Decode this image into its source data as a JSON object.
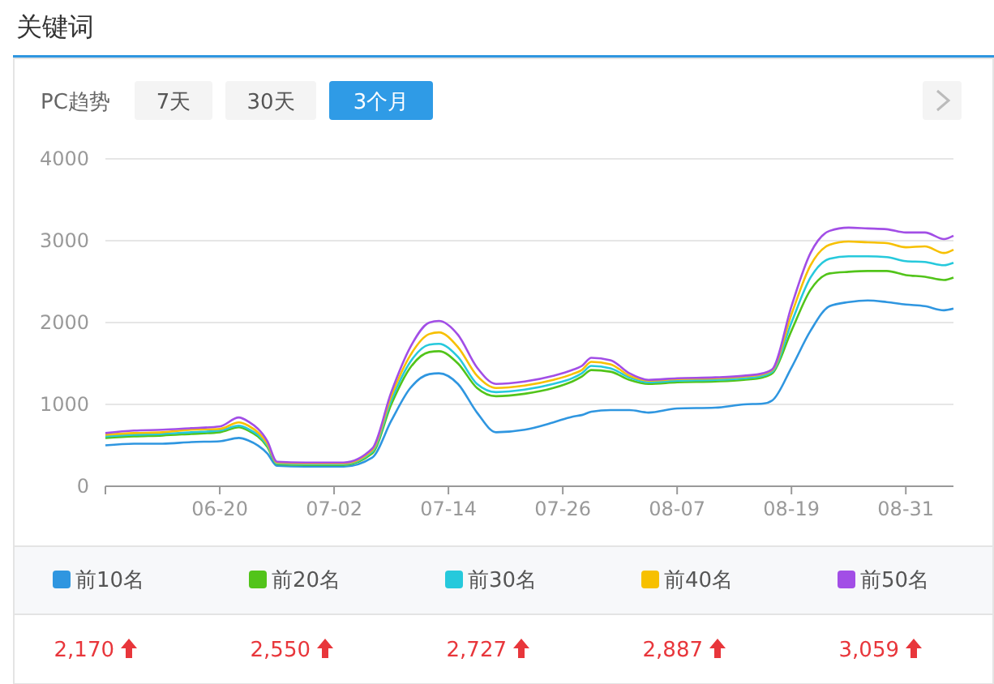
{
  "chart_data": {
    "type": "line",
    "title": "关键词",
    "annotations": [
      "PC趋势",
      "7天",
      "30天",
      "3个月",
      "2,170",
      "2,550",
      "2,727",
      "2,887",
      "3,059"
    ],
    "x": [
      "--06-08",
      "--06-11",
      "--06-14",
      "--06-17",
      "--06-20",
      "--06-22",
      "--06-23",
      "--06-25",
      "--06-26",
      "--06-29",
      "--07-03",
      "--07-06",
      "--07-08",
      "--07-10",
      "--07-12",
      "--07-13",
      "--07-15",
      "--07-17",
      "--07-19",
      "--07-22",
      "--07-25",
      "--07-27",
      "--07-28",
      "--07-29",
      "--07-31",
      "--08-02",
      "--08-04",
      "--08-07",
      "--08-11",
      "--08-14",
      "--08-16",
      "--08-17",
      "--08-19",
      "--08-21",
      "--08-23",
      "--08-25",
      "--08-27",
      "--08-29",
      "--08-31",
      "--09-02",
      "--09-04",
      "--09-05"
    ],
    "series": [
      {
        "name": "前10名",
        "color": "#2f96e0",
        "values": [
          500,
          520,
          520,
          540,
          550,
          590,
          560,
          400,
          250,
          240,
          240,
          350,
          800,
          1200,
          1370,
          1380,
          1250,
          900,
          660,
          690,
          780,
          850,
          870,
          910,
          930,
          930,
          900,
          950,
          960,
          1000,
          1010,
          1050,
          1450,
          1900,
          2200,
          2250,
          2270,
          2250,
          2220,
          2200,
          2150,
          2170
        ]
      },
      {
        "name": "前20名",
        "color": "#52c41a",
        "values": [
          590,
          610,
          620,
          640,
          660,
          720,
          680,
          480,
          270,
          260,
          260,
          400,
          1000,
          1450,
          1640,
          1650,
          1500,
          1200,
          1100,
          1130,
          1200,
          1280,
          1340,
          1420,
          1400,
          1300,
          1250,
          1270,
          1280,
          1300,
          1330,
          1380,
          1900,
          2400,
          2600,
          2620,
          2630,
          2630,
          2580,
          2560,
          2520,
          2550
        ]
      },
      {
        "name": "前30名",
        "color": "#26c9dc",
        "values": [
          610,
          630,
          640,
          660,
          680,
          740,
          700,
          500,
          280,
          270,
          270,
          420,
          1050,
          1520,
          1730,
          1740,
          1580,
          1250,
          1150,
          1180,
          1250,
          1320,
          1380,
          1470,
          1440,
          1330,
          1270,
          1290,
          1300,
          1320,
          1350,
          1400,
          2000,
          2550,
          2780,
          2810,
          2810,
          2800,
          2750,
          2740,
          2700,
          2730
        ]
      },
      {
        "name": "前40名",
        "color": "#f7c000",
        "values": [
          630,
          650,
          660,
          690,
          700,
          780,
          740,
          520,
          290,
          280,
          280,
          440,
          1100,
          1600,
          1860,
          1880,
          1700,
          1350,
          1200,
          1230,
          1300,
          1370,
          1420,
          1520,
          1490,
          1350,
          1290,
          1310,
          1320,
          1340,
          1370,
          1420,
          2100,
          2700,
          2950,
          2990,
          2980,
          2970,
          2920,
          2930,
          2850,
          2890
        ]
      },
      {
        "name": "前50名",
        "color": "#a24ee6",
        "values": [
          650,
          680,
          690,
          710,
          730,
          840,
          790,
          550,
          300,
          290,
          290,
          460,
          1150,
          1700,
          2000,
          2020,
          1850,
          1450,
          1250,
          1280,
          1350,
          1420,
          1470,
          1570,
          1540,
          1380,
          1300,
          1320,
          1330,
          1350,
          1380,
          1430,
          2200,
          2850,
          3120,
          3160,
          3150,
          3140,
          3100,
          3100,
          3020,
          3060
        ]
      }
    ],
    "xlim": [
      "--06-08",
      "--09-05"
    ],
    "xticks": [
      {
        "value": "--06-08",
        "label": null
      },
      {
        "value": "--06-20",
        "label": "06-20"
      },
      {
        "value": "--07-02",
        "label": "07-02"
      },
      {
        "value": "--07-14",
        "label": "07-14"
      },
      {
        "value": "--07-26",
        "label": "07-26"
      },
      {
        "value": "--08-07",
        "label": "08-07"
      },
      {
        "value": "--08-19",
        "label": "08-19"
      },
      {
        "value": "--08-31",
        "label": "08-31"
      }
    ],
    "ylim": [
      0,
      4000
    ],
    "yticks": [
      0,
      1000,
      2000,
      3000,
      4000
    ],
    "grid": "y",
    "legend": "bottom"
  }
}
